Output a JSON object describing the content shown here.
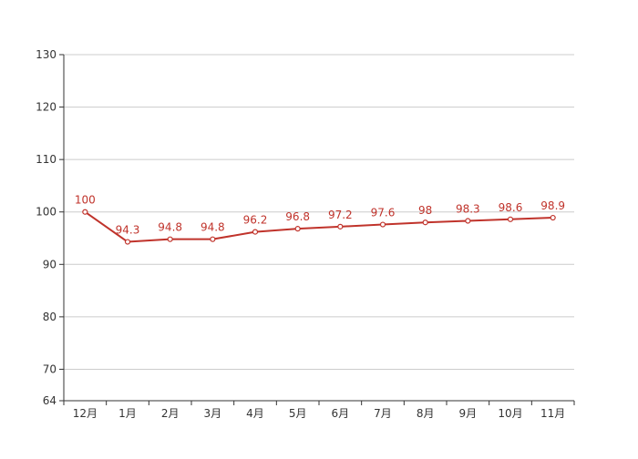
{
  "chart_data": {
    "type": "line",
    "categories": [
      "12月",
      "1月",
      "2月",
      "3月",
      "4月",
      "5月",
      "6月",
      "7月",
      "8月",
      "9月",
      "10月",
      "11月"
    ],
    "series": [
      {
        "values": [
          100,
          94.3,
          94.8,
          94.8,
          96.2,
          96.8,
          97.2,
          97.6,
          98,
          98.3,
          98.6,
          98.9
        ],
        "color": "#c0332b"
      }
    ],
    "y_ticks": [
      64,
      70,
      80,
      90,
      100,
      110,
      120,
      130
    ],
    "ylim": [
      64,
      130
    ],
    "grid": true,
    "data_labels": true,
    "legend": "none",
    "colors": {
      "line": "#c0332b",
      "label": "#c0332b",
      "grid": "#cccccc",
      "axis": "#333333",
      "tick_text": "#333333"
    }
  }
}
